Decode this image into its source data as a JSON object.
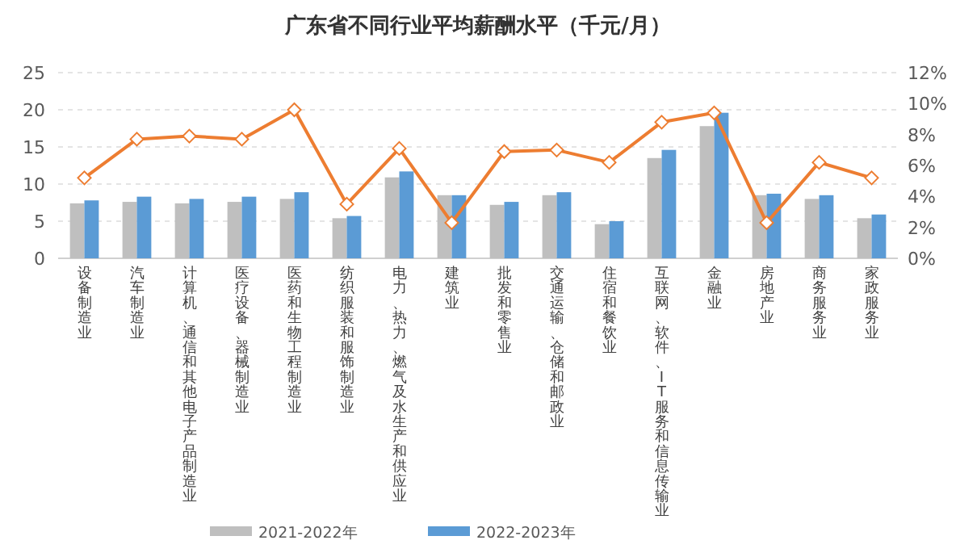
{
  "chart_data": {
    "type": "bar",
    "title": "广东省不同行业平均薪酬水平（千元/月）",
    "categories": [
      "设备制造业",
      "汽车制造业",
      "计算机、通信和其他电子产品制造业",
      "医疗设备、器械制造业",
      "医药和生物工程制造业",
      "纺织服装和服饰制造业",
      "电力、热力、燃气及水生产和供应业",
      "建筑业",
      "批发和零售业",
      "交通运输、仓储和邮政业",
      "住宿和餐饮业",
      "互联网、软件、IT服务和信息传输业",
      "金融业",
      "房地产业",
      "商务服务业",
      "家政服务业"
    ],
    "series": [
      {
        "name": "2021-2022年",
        "color": "#bfbfbf",
        "values": [
          7.4,
          7.6,
          7.4,
          7.6,
          8.0,
          5.4,
          10.9,
          8.5,
          7.2,
          8.5,
          4.6,
          13.5,
          17.8,
          8.5,
          8.0,
          5.4
        ]
      },
      {
        "name": "2022-2023年",
        "color": "#5b9bd5",
        "values": [
          7.8,
          8.3,
          8.0,
          8.3,
          8.9,
          5.7,
          11.7,
          8.5,
          7.6,
          8.9,
          5.0,
          14.6,
          19.6,
          8.7,
          8.5,
          5.9
        ]
      },
      {
        "type": "line",
        "axis": "y2",
        "color": "#ed7d31",
        "marker": "diamond",
        "values": [
          5.2,
          7.7,
          7.9,
          7.7,
          9.6,
          3.5,
          7.1,
          2.3,
          6.9,
          7.0,
          6.2,
          8.8,
          9.4,
          2.3,
          6.2,
          5.2
        ]
      }
    ],
    "ylim": [
      0,
      25
    ],
    "yticks": [
      0,
      5,
      10,
      15,
      20,
      25
    ],
    "y2lim": [
      0,
      12
    ],
    "y2ticks": [
      {
        "value": 0,
        "label": "0%"
      },
      {
        "value": 2,
        "label": "2%"
      },
      {
        "value": 4,
        "label": "4%"
      },
      {
        "value": 6,
        "label": "6%"
      },
      {
        "value": 8,
        "label": "8%"
      },
      {
        "value": 10,
        "label": "10%"
      },
      {
        "value": 12,
        "label": "12%"
      }
    ],
    "grid": "y",
    "legend": "bottom"
  }
}
